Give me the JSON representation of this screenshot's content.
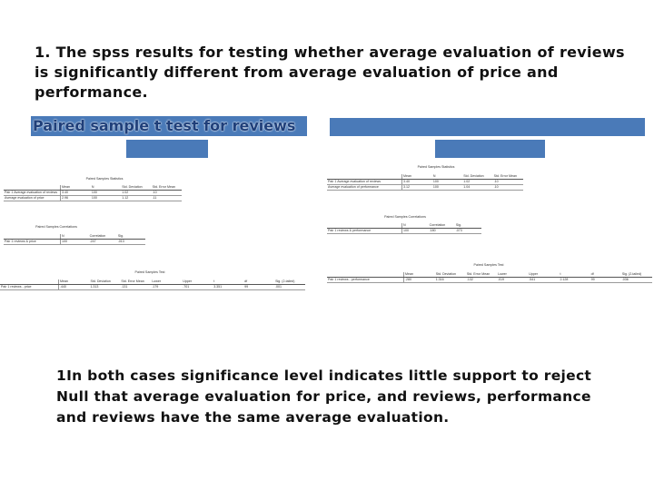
{
  "heading": "1. The spss results for testing whether average evaluation of reviews is significantly different from average evaluation of price and performance.",
  "title_bar": "Paired sample t test for reviews",
  "conclusion": {
    "line1": "1In both cases significance level indicates little support to reject",
    "line2": "Null that average evaluation for price, and reviews, performance",
    "line3": "and reviews have the same average evaluation."
  },
  "colors": {
    "bar": "#4a7ab8",
    "bar_text": "#1f3f7a"
  },
  "left_output": {
    "stats_title": "Paired Samples Statistics",
    "stats_headers": [
      "",
      "Mean",
      "N",
      "Std. Deviation",
      "Std. Error Mean"
    ],
    "stats_rows": [
      [
        "Pair 1  Average evaluation of reviews",
        "3.40",
        "100",
        "1.02",
        ".10"
      ],
      [
        "Average evaluation of price",
        "2.96",
        "100",
        "1.12",
        ".11"
      ]
    ],
    "corr_title": "Paired Samples Correlations",
    "corr_headers": [
      "",
      "N",
      "Correlation",
      "Sig."
    ],
    "corr_rows": [
      [
        "Pair 1  reviews & price",
        "100",
        ".247",
        ".013"
      ]
    ],
    "test_title": "Paired Samples Test",
    "test_headers": [
      "",
      "Mean",
      "Std. Deviation",
      "Std. Error Mean",
      "Lower",
      "Upper",
      "t",
      "df",
      "Sig. (2-tailed)"
    ],
    "test_rows": [
      [
        "Pair 1  reviews - price",
        ".440",
        "1.313",
        ".131",
        ".179",
        ".701",
        "3.351",
        "99",
        ".001"
      ]
    ]
  },
  "right_output": {
    "stats_title": "Paired Samples Statistics",
    "stats_headers": [
      "",
      "Mean",
      "N",
      "Std. Deviation",
      "Std. Error Mean"
    ],
    "stats_rows": [
      [
        "Pair 1  Average evaluation of reviews",
        "3.40",
        "100",
        "1.02",
        ".10"
      ],
      [
        "Average evaluation of performance",
        "3.12",
        "100",
        "1.04",
        ".10"
      ]
    ],
    "corr_title": "Paired Samples Correlations",
    "corr_headers": [
      "",
      "N",
      "Correlation",
      "Sig."
    ],
    "corr_rows": [
      [
        "Pair 1  reviews & performance",
        "100",
        ".180",
        ".073"
      ]
    ],
    "test_title": "Paired Samples Test",
    "test_headers": [
      "",
      "Mean",
      "Std. Deviation",
      "Std. Error Mean",
      "Lower",
      "Upper",
      "t",
      "df",
      "Sig. (2-tailed)"
    ],
    "test_rows": [
      [
        "Pair 1  reviews - performance",
        ".280",
        "1.316",
        ".132",
        ".019",
        ".541",
        "2.128",
        "99",
        ".036"
      ]
    ]
  }
}
